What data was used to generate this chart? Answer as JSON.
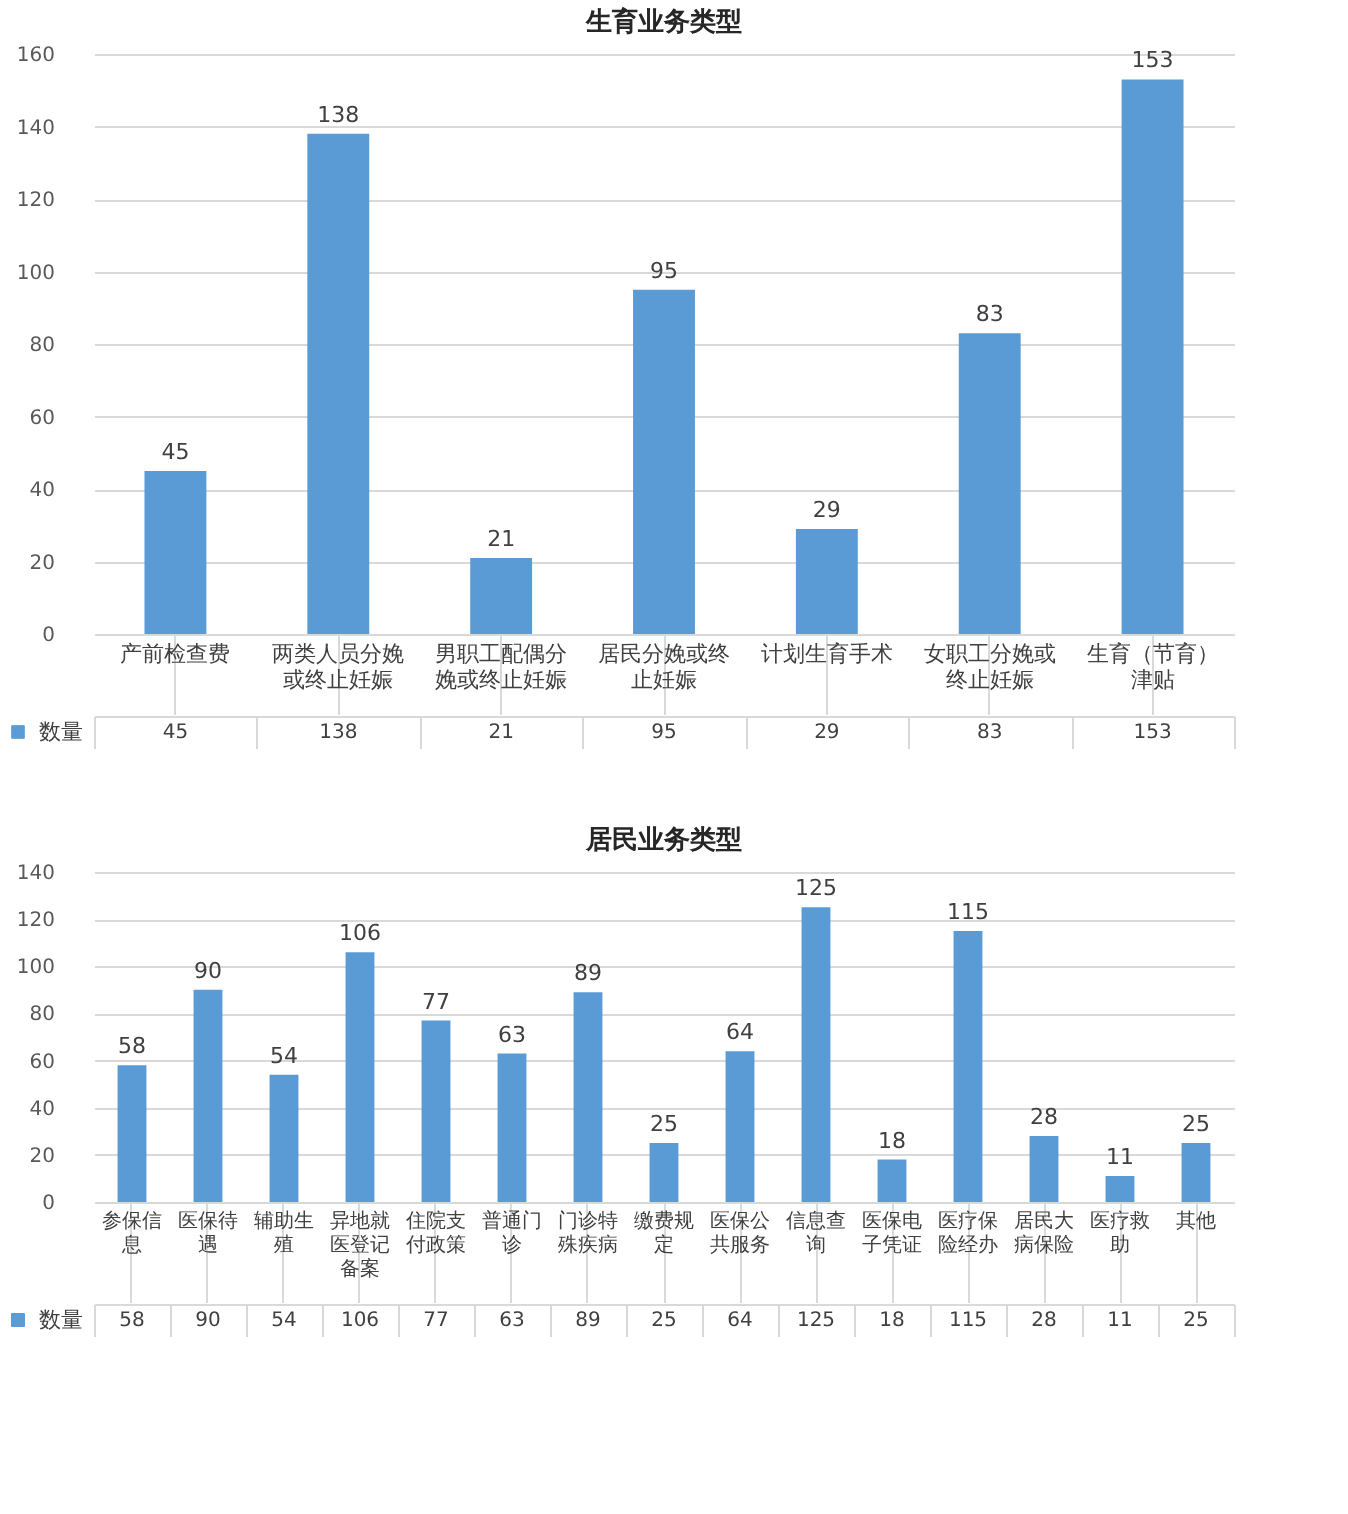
{
  "chart_data": [
    {
      "type": "bar",
      "title": "生育业务类型",
      "categories": [
        "产前检查费",
        "两类人员分娩或终止妊娠",
        "男职工配偶分娩或终止妊娠",
        "居民分娩或终止妊娠",
        "计划生育手术",
        "女职工分娩或终止妊娠",
        "生育（节育）津贴"
      ],
      "series": [
        {
          "name": "数量",
          "color": "#5b9bd5",
          "values": [
            45,
            138,
            21,
            95,
            29,
            83,
            153
          ],
          "value_labels": [
            "45",
            "138",
            "21",
            "95",
            "29",
            "83",
            "153"
          ]
        }
      ],
      "ylim": [
        0,
        160
      ],
      "yticks": [
        0,
        20,
        40,
        60,
        80,
        100,
        120,
        140,
        160
      ],
      "grid": "y",
      "data_labels": true,
      "legend": "bottom left"
    },
    {
      "type": "bar",
      "title": "居民业务类型",
      "categories": [
        "参保信息",
        "医保待遇",
        "辅助生殖",
        "异地就医登记备案",
        "住院支付政策",
        "普通门诊",
        "门诊特殊疾病",
        "缴费规定",
        "医保公共服务",
        "信息查询",
        "医保电子凭证",
        "医疗保险经办",
        "居民大病保险",
        "医疗救助",
        "其他"
      ],
      "series": [
        {
          "name": "数量",
          "color": "#5b9bd5",
          "values": [
            58,
            90,
            54,
            106,
            77,
            63,
            89,
            25,
            64,
            125,
            18,
            115,
            28,
            11,
            25
          ],
          "value_labels": [
            "58",
            "90",
            "54",
            "106",
            "77",
            "63",
            "89",
            "25",
            "64",
            "125",
            "18",
            "115",
            "28",
            "11",
            "25"
          ]
        }
      ],
      "ylim": [
        0,
        140
      ],
      "yticks": [
        0,
        20,
        40,
        60,
        80,
        100,
        120,
        140
      ],
      "grid": "y",
      "data_labels": true,
      "legend": "bottom left"
    }
  ]
}
